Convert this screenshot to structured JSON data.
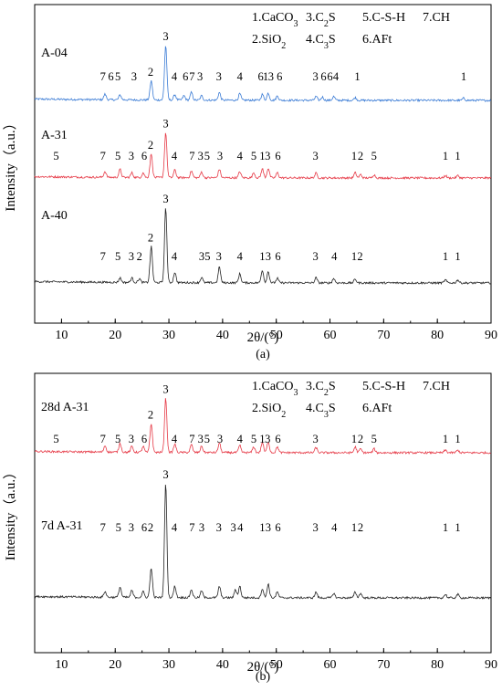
{
  "colors": {
    "blue": "#3a7bd5",
    "red": "#e63946",
    "black": "#222222"
  },
  "chart_data": [
    {
      "type": "line",
      "panel_label": "(a)",
      "xlabel": "2θ/(°)",
      "ylabel": "Intensity（a.u.）",
      "xlim": [
        5,
        90
      ],
      "xticks": [
        10,
        20,
        30,
        40,
        50,
        60,
        70,
        80,
        90
      ],
      "legend": [
        "1.CaCO3",
        "3.C2S",
        "5.C-S-H",
        "7.CH",
        "2.SiO2",
        "4.C3S",
        "6.AFt"
      ],
      "series": [
        {
          "name": "A-04",
          "color": "blue",
          "peaks": [
            [
              18.1,
              0.1
            ],
            [
              20.9,
              0.09
            ],
            [
              26.7,
              0.35
            ],
            [
              29.4,
              1.0
            ],
            [
              31.1,
              0.1
            ],
            [
              32.8,
              0.08
            ],
            [
              34.2,
              0.14
            ],
            [
              36.1,
              0.08
            ],
            [
              39.4,
              0.14
            ],
            [
              43.2,
              0.12
            ],
            [
              47.4,
              0.11
            ],
            [
              48.5,
              0.13
            ],
            [
              50.2,
              0.08
            ],
            [
              57.4,
              0.07
            ],
            [
              58.6,
              0.06
            ],
            [
              60.7,
              0.07
            ],
            [
              64.7,
              0.05
            ],
            [
              84.9,
              0.04
            ]
          ],
          "labels": [
            [
              "7",
              17.7
            ],
            [
              "6",
              19.2
            ],
            [
              "5",
              20.5
            ],
            [
              "3",
              23.5
            ],
            [
              "2",
              26.6
            ],
            [
              "3",
              29.4
            ],
            [
              "4",
              31.0
            ],
            [
              "6",
              33.1
            ],
            [
              "7",
              34.3
            ],
            [
              "3",
              35.8
            ],
            [
              "3",
              39.3
            ],
            [
              "4",
              43.2
            ],
            [
              "6",
              47.1
            ],
            [
              "1",
              48.0
            ],
            [
              "3",
              49.0
            ],
            [
              "6",
              50.6
            ],
            [
              "3",
              57.3
            ],
            [
              "6",
              58.8
            ],
            [
              "6",
              60.0
            ],
            [
              "4",
              61.1
            ],
            [
              "1",
              65.1
            ],
            [
              "1",
              84.9
            ]
          ]
        },
        {
          "name": "A-31",
          "color": "red",
          "peaks": [
            [
              18.1,
              0.12
            ],
            [
              20.9,
              0.17
            ],
            [
              23.1,
              0.1
            ],
            [
              25.2,
              0.1
            ],
            [
              26.7,
              0.5
            ],
            [
              29.4,
              0.95
            ],
            [
              31.1,
              0.16
            ],
            [
              34.2,
              0.14
            ],
            [
              36.1,
              0.12
            ],
            [
              39.4,
              0.18
            ],
            [
              43.2,
              0.13
            ],
            [
              45.8,
              0.11
            ],
            [
              47.4,
              0.19
            ],
            [
              48.5,
              0.2
            ],
            [
              50.2,
              0.11
            ],
            [
              57.4,
              0.1
            ],
            [
              64.7,
              0.11
            ],
            [
              65.7,
              0.07
            ],
            [
              68.2,
              0.07
            ],
            [
              81.5,
              0.05
            ],
            [
              83.8,
              0.05
            ]
          ],
          "labels": [
            [
              "5",
              9.0
            ],
            [
              "7",
              17.7
            ],
            [
              "5",
              20.5
            ],
            [
              "3",
              23.0
            ],
            [
              "6",
              25.4
            ],
            [
              "2",
              26.6
            ],
            [
              "3",
              29.4
            ],
            [
              "4",
              31.0
            ],
            [
              "7",
              34.3
            ],
            [
              "3",
              35.9
            ],
            [
              "5",
              37.1
            ],
            [
              "3",
              39.5
            ],
            [
              "4",
              43.2
            ],
            [
              "5",
              45.8
            ],
            [
              "1",
              47.4
            ],
            [
              "3",
              48.4
            ],
            [
              "6",
              50.3
            ],
            [
              "3",
              57.3
            ],
            [
              "1",
              64.5
            ],
            [
              "2",
              65.7
            ],
            [
              "5",
              68.2
            ],
            [
              "1",
              81.5
            ],
            [
              "1",
              83.8
            ]
          ]
        },
        {
          "name": "A-40",
          "color": "black",
          "peaks": [
            [
              20.9,
              0.06
            ],
            [
              23.1,
              0.06
            ],
            [
              24.5,
              0.05
            ],
            [
              26.7,
              0.48
            ],
            [
              29.4,
              1.0
            ],
            [
              31.1,
              0.14
            ],
            [
              36.1,
              0.07
            ],
            [
              39.4,
              0.21
            ],
            [
              43.2,
              0.12
            ],
            [
              47.4,
              0.17
            ],
            [
              48.5,
              0.15
            ],
            [
              50.2,
              0.06
            ],
            [
              57.4,
              0.07
            ],
            [
              60.7,
              0.06
            ],
            [
              64.7,
              0.05
            ],
            [
              81.5,
              0.04
            ],
            [
              83.8,
              0.04
            ]
          ],
          "labels": [
            [
              "7",
              17.7
            ],
            [
              "5",
              20.5
            ],
            [
              "3",
              23.0
            ],
            [
              "2",
              24.5
            ],
            [
              "2",
              26.6
            ],
            [
              "3",
              29.4
            ],
            [
              "4",
              31.0
            ],
            [
              "3",
              36.1
            ],
            [
              "5",
              37.2
            ],
            [
              "3",
              39.3
            ],
            [
              "4",
              43.2
            ],
            [
              "1",
              47.4
            ],
            [
              "3",
              48.5
            ],
            [
              "6",
              50.3
            ],
            [
              "3",
              57.3
            ],
            [
              "4",
              60.8
            ],
            [
              "1",
              64.5
            ],
            [
              "2",
              65.6
            ],
            [
              "1",
              81.5
            ],
            [
              "1",
              83.8
            ]
          ]
        }
      ]
    },
    {
      "type": "line",
      "panel_label": "(b)",
      "xlabel": "2θ/(°)",
      "ylabel": "Intensity（a.u.）",
      "xlim": [
        5,
        90
      ],
      "xticks": [
        10,
        20,
        30,
        40,
        50,
        60,
        70,
        80,
        90
      ],
      "legend": [
        "1.CaCO3",
        "3.C2S",
        "5.C-S-H",
        "7.CH",
        "2.SiO2",
        "4.C3S",
        "6.AFt"
      ],
      "series": [
        {
          "name": "28d A-31",
          "color": "red",
          "peaks": [
            [
              18.1,
              0.1
            ],
            [
              20.9,
              0.14
            ],
            [
              23.1,
              0.09
            ],
            [
              25.2,
              0.09
            ],
            [
              26.7,
              0.45
            ],
            [
              29.4,
              0.85
            ],
            [
              31.1,
              0.13
            ],
            [
              34.2,
              0.12
            ],
            [
              36.1,
              0.1
            ],
            [
              39.4,
              0.15
            ],
            [
              43.2,
              0.11
            ],
            [
              45.8,
              0.09
            ],
            [
              47.4,
              0.16
            ],
            [
              48.5,
              0.17
            ],
            [
              50.2,
              0.09
            ],
            [
              57.4,
              0.08
            ],
            [
              64.7,
              0.09
            ],
            [
              65.7,
              0.06
            ],
            [
              68.2,
              0.06
            ],
            [
              81.5,
              0.04
            ],
            [
              83.8,
              0.04
            ]
          ],
          "labels": [
            [
              "5",
              9.0
            ],
            [
              "7",
              17.7
            ],
            [
              "5",
              20.5
            ],
            [
              "3",
              23.0
            ],
            [
              "6",
              25.4
            ],
            [
              "2",
              26.6
            ],
            [
              "3",
              29.4
            ],
            [
              "4",
              31.0
            ],
            [
              "7",
              34.3
            ],
            [
              "3",
              35.9
            ],
            [
              "5",
              37.1
            ],
            [
              "3",
              39.5
            ],
            [
              "4",
              43.2
            ],
            [
              "5",
              45.8
            ],
            [
              "1",
              47.4
            ],
            [
              "3",
              48.4
            ],
            [
              "6",
              50.3
            ],
            [
              "3",
              57.3
            ],
            [
              "1",
              64.5
            ],
            [
              "2",
              65.7
            ],
            [
              "5",
              68.2
            ],
            [
              "1",
              81.5
            ],
            [
              "1",
              83.8
            ]
          ]
        },
        {
          "name": "7d A-31",
          "color": "black",
          "peaks": [
            [
              18.1,
              0.05
            ],
            [
              20.9,
              0.09
            ],
            [
              23.1,
              0.06
            ],
            [
              25.2,
              0.05
            ],
            [
              26.7,
              0.26
            ],
            [
              29.4,
              1.0
            ],
            [
              31.1,
              0.1
            ],
            [
              34.2,
              0.07
            ],
            [
              36.1,
              0.06
            ],
            [
              39.4,
              0.1
            ],
            [
              42.4,
              0.07
            ],
            [
              43.2,
              0.1
            ],
            [
              47.4,
              0.08
            ],
            [
              48.5,
              0.12
            ],
            [
              50.2,
              0.05
            ],
            [
              57.4,
              0.05
            ],
            [
              60.7,
              0.04
            ],
            [
              64.7,
              0.05
            ],
            [
              65.7,
              0.04
            ],
            [
              81.5,
              0.03
            ],
            [
              83.8,
              0.03
            ]
          ],
          "labels": [
            [
              "7",
              17.7
            ],
            [
              "5",
              20.6
            ],
            [
              "3",
              23.0
            ],
            [
              "6",
              25.4
            ],
            [
              "2",
              26.6
            ],
            [
              "3",
              29.4
            ],
            [
              "4",
              31.0
            ],
            [
              "7",
              34.3
            ],
            [
              "3",
              36.1
            ],
            [
              "3",
              39.3
            ],
            [
              "3",
              42.0
            ],
            [
              "4",
              43.3
            ],
            [
              "1",
              47.4
            ],
            [
              "3",
              48.5
            ],
            [
              "6",
              50.3
            ],
            [
              "3",
              57.3
            ],
            [
              "4",
              60.8
            ],
            [
              "1",
              64.5
            ],
            [
              "2",
              65.7
            ],
            [
              "1",
              81.5
            ],
            [
              "1",
              83.8
            ]
          ]
        }
      ]
    }
  ]
}
